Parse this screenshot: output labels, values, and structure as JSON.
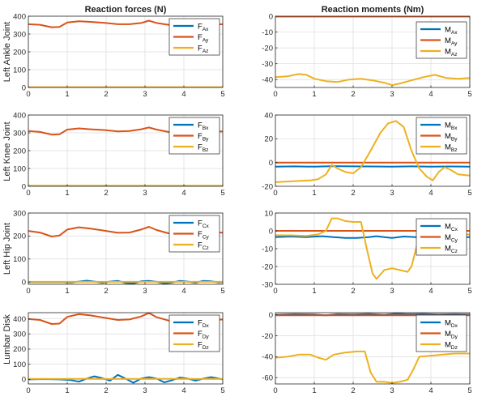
{
  "figure": {
    "column_titles": [
      "Reaction forces (N)",
      "Reaction moments (Nm)"
    ],
    "row_labels": [
      "Left Ankle Joint",
      "Left Knee Joint",
      "Left Hip Joint",
      "Lumbar Disk"
    ]
  },
  "colors": {
    "blue": "#0072BD",
    "orange": "#D95319",
    "yellow": "#EDB120",
    "grid": "#dcdcdc",
    "axis": "#262626"
  },
  "chart_data": [
    {
      "type": "line",
      "row": 0,
      "col": 0,
      "xlim": [
        0,
        5
      ],
      "ylim": [
        0,
        400
      ],
      "xticks": [
        0,
        1,
        2,
        3,
        4,
        5
      ],
      "yticks": [
        0,
        100,
        200,
        300,
        400
      ],
      "grid": true,
      "legend_position": "top-right",
      "series": [
        {
          "name": "F",
          "sub": "Ax",
          "color": "#0072BD",
          "x": [
            0,
            5
          ],
          "y": [
            0,
            0
          ]
        },
        {
          "name": "F",
          "sub": "Ay",
          "color": "#D95319",
          "x": [
            0,
            0.3,
            0.6,
            0.8,
            1.0,
            1.3,
            1.6,
            2.0,
            2.3,
            2.6,
            2.9,
            3.1,
            3.3,
            3.6,
            4.0,
            4.3,
            4.6,
            5.0
          ],
          "y": [
            355,
            352,
            338,
            340,
            365,
            372,
            368,
            362,
            355,
            355,
            362,
            375,
            362,
            352,
            352,
            358,
            352,
            355
          ]
        },
        {
          "name": "F",
          "sub": "Az",
          "color": "#EDB120",
          "x": [
            0,
            5
          ],
          "y": [
            2,
            2
          ]
        }
      ]
    },
    {
      "type": "line",
      "row": 0,
      "col": 1,
      "xlim": [
        0,
        5
      ],
      "ylim": [
        -45,
        0
      ],
      "xticks": [
        0,
        1,
        2,
        3,
        4,
        5
      ],
      "yticks": [
        0,
        -10,
        -20,
        -30,
        -40
      ],
      "grid": true,
      "legend_position": "right",
      "series": [
        {
          "name": "M",
          "sub": "Ax",
          "color": "#0072BD",
          "x": [
            0,
            5
          ],
          "y": [
            -0.2,
            -0.2
          ]
        },
        {
          "name": "M",
          "sub": "Ay",
          "color": "#D95319",
          "x": [
            0,
            5
          ],
          "y": [
            0,
            0
          ]
        },
        {
          "name": "M",
          "sub": "Az",
          "color": "#EDB120",
          "x": [
            0,
            0.3,
            0.6,
            0.8,
            1.0,
            1.3,
            1.6,
            1.9,
            2.2,
            2.5,
            2.8,
            3.0,
            3.2,
            3.5,
            3.8,
            4.1,
            4.4,
            4.7,
            5.0
          ],
          "y": [
            -38.5,
            -38,
            -36.5,
            -37,
            -39.5,
            -41,
            -41.5,
            -40,
            -39.5,
            -40.5,
            -42,
            -43.5,
            -42.5,
            -40.5,
            -38.5,
            -37,
            -39,
            -39.5,
            -39
          ]
        }
      ]
    },
    {
      "type": "line",
      "row": 1,
      "col": 0,
      "xlim": [
        0,
        5
      ],
      "ylim": [
        0,
        400
      ],
      "xticks": [
        0,
        1,
        2,
        3,
        4,
        5
      ],
      "yticks": [
        0,
        100,
        200,
        300,
        400
      ],
      "grid": true,
      "legend_position": "top-right",
      "series": [
        {
          "name": "F",
          "sub": "Bx",
          "color": "#0072BD",
          "x": [
            0,
            5
          ],
          "y": [
            0,
            0
          ]
        },
        {
          "name": "F",
          "sub": "By",
          "color": "#D95319",
          "x": [
            0,
            0.3,
            0.6,
            0.8,
            1.0,
            1.3,
            1.6,
            2.0,
            2.3,
            2.6,
            2.9,
            3.1,
            3.3,
            3.6,
            4.0,
            4.3,
            4.6,
            5.0
          ],
          "y": [
            310,
            305,
            290,
            292,
            318,
            325,
            320,
            315,
            308,
            310,
            320,
            330,
            318,
            305,
            305,
            312,
            306,
            308
          ]
        },
        {
          "name": "F",
          "sub": "Bz",
          "color": "#EDB120",
          "x": [
            0,
            5
          ],
          "y": [
            3,
            3
          ]
        }
      ]
    },
    {
      "type": "line",
      "row": 1,
      "col": 1,
      "xlim": [
        0,
        5
      ],
      "ylim": [
        -20,
        40
      ],
      "xticks": [
        0,
        1,
        2,
        3,
        4,
        5
      ],
      "yticks": [
        -20,
        0,
        20,
        40
      ],
      "grid": true,
      "legend_position": "top-right",
      "series": [
        {
          "name": "M",
          "sub": "Bx",
          "color": "#0072BD",
          "x": [
            0,
            0.5,
            1.0,
            1.5,
            2.0,
            2.5,
            3.0,
            3.5,
            4.0,
            4.5,
            5.0
          ],
          "y": [
            -3.5,
            -3.2,
            -3.5,
            -3,
            -3.2,
            -3.3,
            -3.5,
            -3.2,
            -3.5,
            -3.3,
            -3.4
          ]
        },
        {
          "name": "M",
          "sub": "By",
          "color": "#D95319",
          "x": [
            0,
            5
          ],
          "y": [
            0,
            0
          ]
        },
        {
          "name": "M",
          "sub": "Bz",
          "color": "#EDB120",
          "x": [
            0,
            0.3,
            0.6,
            0.9,
            1.1,
            1.3,
            1.45,
            1.6,
            1.8,
            2.0,
            2.2,
            2.45,
            2.7,
            2.9,
            3.1,
            3.3,
            3.5,
            3.7,
            3.9,
            4.05,
            4.2,
            4.35,
            4.5,
            4.7,
            5.0
          ],
          "y": [
            -16.5,
            -16,
            -15.5,
            -15,
            -14,
            -10,
            -2,
            -5,
            -8,
            -9,
            -4,
            10,
            25,
            33,
            35,
            30,
            10,
            -5,
            -12,
            -15,
            -8,
            -4,
            -6,
            -10,
            -11
          ]
        }
      ]
    },
    {
      "type": "line",
      "row": 2,
      "col": 0,
      "xlim": [
        0,
        5
      ],
      "ylim": [
        -10,
        300
      ],
      "xticks": [
        0,
        1,
        2,
        3,
        4,
        5
      ],
      "yticks": [
        0,
        100,
        200,
        300
      ],
      "grid": true,
      "legend_position": "top-right",
      "series": [
        {
          "name": "F",
          "sub": "Cx",
          "color": "#0072BD",
          "x": [
            0,
            0.3,
            0.6,
            0.9,
            1.1,
            1.3,
            1.5,
            1.7,
            1.9,
            2.1,
            2.3,
            2.5,
            2.7,
            2.9,
            3.1,
            3.3,
            3.5,
            3.7,
            3.9,
            4.1,
            4.3,
            4.5,
            4.7,
            4.9,
            5.0
          ],
          "y": [
            0,
            0,
            0,
            0,
            -2,
            2,
            6,
            2,
            -3,
            2,
            5,
            -4,
            -6,
            3,
            5,
            1,
            -6,
            -2,
            5,
            2,
            -3,
            5,
            3,
            -2,
            0
          ]
        },
        {
          "name": "F",
          "sub": "Cy",
          "color": "#D95319",
          "x": [
            0,
            0.3,
            0.6,
            0.8,
            1.0,
            1.3,
            1.6,
            2.0,
            2.3,
            2.6,
            2.9,
            3.1,
            3.3,
            3.6,
            4.0,
            4.3,
            4.6,
            5.0
          ],
          "y": [
            222,
            215,
            198,
            202,
            228,
            238,
            232,
            222,
            214,
            215,
            228,
            240,
            226,
            212,
            212,
            220,
            213,
            215
          ]
        },
        {
          "name": "F",
          "sub": "Cz",
          "color": "#EDB120",
          "x": [
            0,
            5
          ],
          "y": [
            1,
            1
          ]
        }
      ]
    },
    {
      "type": "line",
      "row": 2,
      "col": 1,
      "xlim": [
        0,
        5
      ],
      "ylim": [
        -30,
        10
      ],
      "xticks": [
        0,
        1,
        2,
        3,
        4,
        5
      ],
      "yticks": [
        10,
        0,
        -10,
        -20,
        -30
      ],
      "grid": true,
      "legend_position": "right",
      "series": [
        {
          "name": "M",
          "sub": "Cx",
          "color": "#0072BD",
          "x": [
            0,
            0.4,
            0.8,
            1.2,
            1.5,
            1.8,
            2.1,
            2.4,
            2.6,
            2.8,
            3.0,
            3.3,
            3.6,
            4.0,
            4.4,
            4.8,
            5.0
          ],
          "y": [
            -3.5,
            -3.2,
            -3.5,
            -3,
            -3.5,
            -4,
            -4,
            -3.5,
            -3,
            -3.5,
            -4,
            -3.2,
            -3.5,
            -3.5,
            -3,
            -3.5,
            -3.5
          ]
        },
        {
          "name": "M",
          "sub": "Cy",
          "color": "#D95319",
          "x": [
            0,
            5
          ],
          "y": [
            0,
            0
          ]
        },
        {
          "name": "M",
          "sub": "Cz",
          "color": "#EDB120",
          "x": [
            0,
            0.4,
            0.8,
            1.1,
            1.3,
            1.45,
            1.6,
            1.8,
            2.0,
            2.2,
            2.35,
            2.5,
            2.6,
            2.8,
            3.0,
            3.2,
            3.4,
            3.5,
            3.7,
            3.9,
            4.1,
            4.4,
            4.7,
            5.0
          ],
          "y": [
            -2.5,
            -2.5,
            -2.8,
            -2,
            0,
            7,
            7,
            5.5,
            5,
            5,
            -10,
            -24,
            -27,
            -22,
            -21,
            -22,
            -23,
            -20,
            -3,
            -2,
            -2,
            -2,
            -2,
            -2
          ]
        }
      ]
    },
    {
      "type": "line",
      "row": 3,
      "col": 0,
      "xlim": [
        0,
        5
      ],
      "ylim": [
        -30,
        440
      ],
      "xticks": [
        0,
        1,
        2,
        3,
        4,
        5
      ],
      "yticks": [
        0,
        100,
        200,
        300,
        400
      ],
      "grid": true,
      "legend_position": "top-right",
      "series": [
        {
          "name": "F",
          "sub": "Dx",
          "color": "#0072BD",
          "x": [
            0,
            0.4,
            0.8,
            1.1,
            1.3,
            1.5,
            1.7,
            1.9,
            2.1,
            2.3,
            2.5,
            2.7,
            2.9,
            3.1,
            3.3,
            3.5,
            3.7,
            3.9,
            4.1,
            4.3,
            4.5,
            4.7,
            4.9,
            5.0
          ],
          "y": [
            0,
            2,
            0,
            -5,
            -15,
            5,
            20,
            8,
            -8,
            30,
            5,
            -22,
            5,
            15,
            5,
            -20,
            -5,
            12,
            5,
            -8,
            5,
            15,
            5,
            0
          ]
        },
        {
          "name": "F",
          "sub": "Dy",
          "color": "#D95319",
          "x": [
            0,
            0.3,
            0.6,
            0.8,
            1.0,
            1.3,
            1.6,
            2.0,
            2.3,
            2.6,
            2.9,
            3.1,
            3.3,
            3.6,
            4.0,
            4.3,
            4.6,
            5.0
          ],
          "y": [
            398,
            392,
            365,
            368,
            412,
            430,
            422,
            405,
            392,
            395,
            415,
            438,
            410,
            388,
            385,
            398,
            388,
            395
          ]
        },
        {
          "name": "F",
          "sub": "Dz",
          "color": "#EDB120",
          "x": [
            0,
            0.5,
            1.0,
            1.5,
            2.0,
            2.5,
            3.0,
            3.5,
            4.0,
            4.5,
            5.0
          ],
          "y": [
            3,
            3,
            3,
            4,
            3,
            3,
            3,
            4,
            3,
            3,
            3
          ]
        }
      ]
    },
    {
      "type": "line",
      "row": 3,
      "col": 1,
      "xlim": [
        0,
        5
      ],
      "ylim": [
        -66,
        2
      ],
      "xticks": [
        0,
        1,
        2,
        3,
        4,
        5
      ],
      "yticks": [
        0,
        -20,
        -40,
        -60
      ],
      "grid": true,
      "legend_position": "top-right",
      "series": [
        {
          "name": "M",
          "sub": "Dx",
          "color": "#0072BD",
          "x": [
            0,
            0.5,
            1.0,
            1.3,
            1.6,
            2.0,
            2.4,
            2.8,
            3.1,
            3.4,
            3.8,
            4.2,
            4.6,
            5.0
          ],
          "y": [
            0,
            0.5,
            0.3,
            -0.5,
            0.5,
            0.3,
            0.8,
            0,
            1,
            0.5,
            0.8,
            0.3,
            0.5,
            0.3
          ]
        },
        {
          "name": "M",
          "sub": "Dy",
          "color": "#D95319",
          "x": [
            0,
            5
          ],
          "y": [
            -0.5,
            -0.5
          ]
        },
        {
          "name": "M",
          "sub": "Dz",
          "color": "#EDB120",
          "x": [
            0,
            0.3,
            0.6,
            0.9,
            1.1,
            1.3,
            1.5,
            1.8,
            2.1,
            2.3,
            2.45,
            2.6,
            2.8,
            3.0,
            3.2,
            3.4,
            3.55,
            3.7,
            4.0,
            4.3,
            4.6,
            4.9,
            5.0
          ],
          "y": [
            -41,
            -40,
            -38,
            -38,
            -41,
            -43,
            -38,
            -36,
            -35,
            -35,
            -55,
            -64,
            -64,
            -65,
            -64,
            -62,
            -52,
            -40,
            -39,
            -38,
            -37,
            -37,
            -37
          ]
        }
      ]
    }
  ]
}
